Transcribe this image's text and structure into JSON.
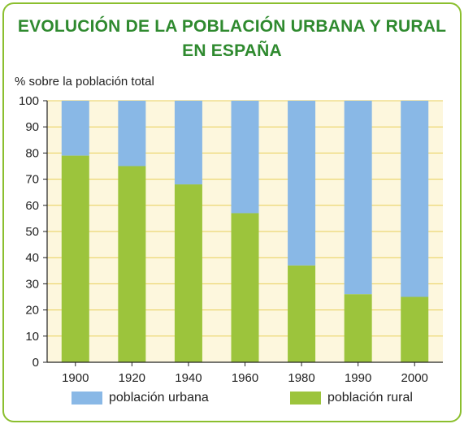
{
  "title_line1": "EVOLUCIÓN DE LA POBLACIÓN URBANA Y RURAL",
  "title_line2": "EN ESPAÑA",
  "colors": {
    "urban": "#89b8e6",
    "rural": "#9cc43c",
    "plot_bg": "#fdf7dd",
    "grid": "#e8cf5a",
    "title": "#2f8a2f",
    "frame": "#8bbf2e"
  },
  "chart_data": {
    "type": "bar",
    "stacked": true,
    "title": "EVOLUCIÓN DE LA POBLACIÓN URBANA Y RURAL EN ESPAÑA",
    "ylabel": "% sobre la población total",
    "xlabel": "",
    "ylim": [
      0,
      100
    ],
    "yticks": [
      0,
      10,
      20,
      30,
      40,
      50,
      60,
      70,
      80,
      90,
      100
    ],
    "grid": true,
    "legend_position": "bottom",
    "categories": [
      "1900",
      "1920",
      "1940",
      "1960",
      "1980",
      "1990",
      "2000"
    ],
    "series": [
      {
        "name": "población rural",
        "values": [
          79,
          75,
          68,
          57,
          37,
          26,
          25
        ]
      },
      {
        "name": "población urbana",
        "values": [
          21,
          25,
          32,
          43,
          63,
          74,
          75
        ]
      }
    ]
  }
}
